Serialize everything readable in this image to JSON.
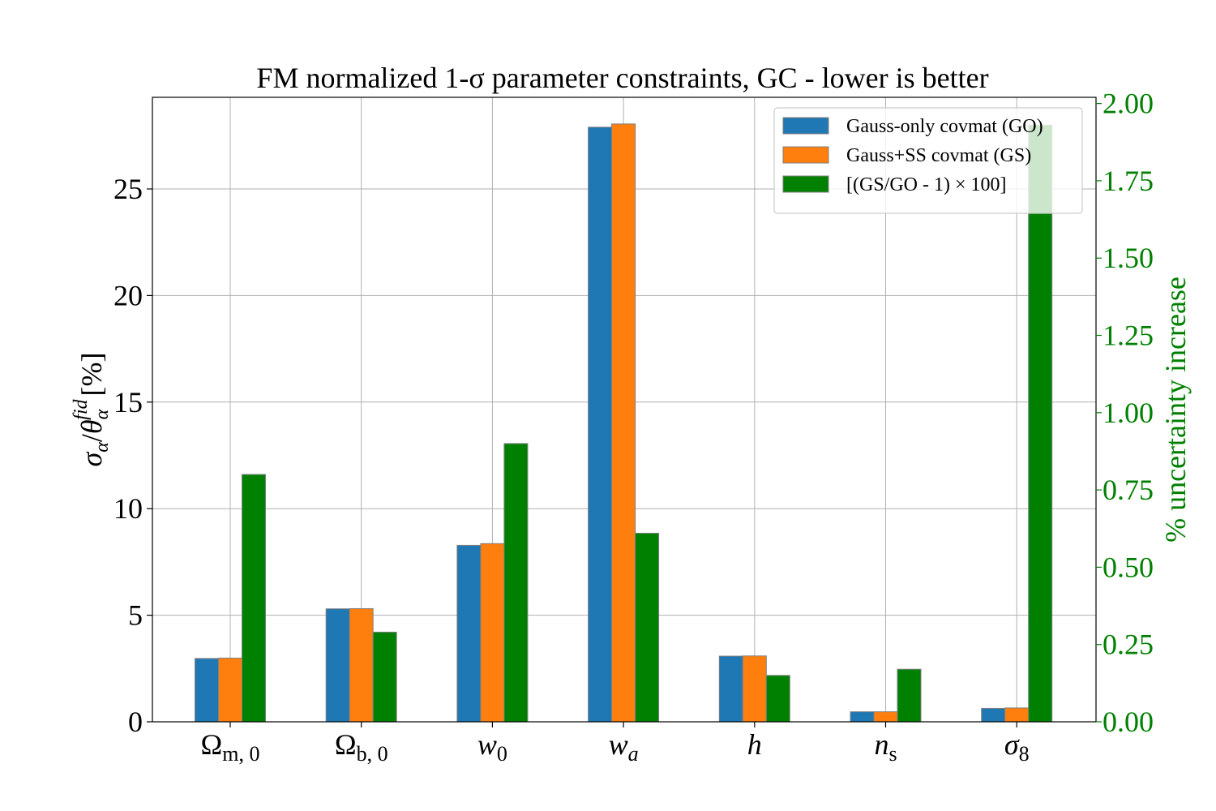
{
  "chart_data": {
    "type": "bar",
    "title": "FM normalized 1-σ parameter constraints, GC - lower is better",
    "categories": [
      "Ωm,0",
      "Ωb,0",
      "w0",
      "wa",
      "h",
      "ns",
      "σ8"
    ],
    "category_labels": [
      {
        "main": "Ω",
        "sub": "m, 0",
        "italic": false
      },
      {
        "main": "Ω",
        "sub": "b, 0",
        "italic": false
      },
      {
        "main": "w",
        "sub": "0",
        "italic": true
      },
      {
        "main": "w",
        "sub": "a",
        "italic": true
      },
      {
        "main": "h",
        "sub": "",
        "italic": true
      },
      {
        "main": "n",
        "sub": "s",
        "italic": true
      },
      {
        "main": "σ",
        "sub": "8",
        "italic": true
      }
    ],
    "series": [
      {
        "name": "Gauss-only covmat (GO)",
        "axis": "left",
        "color": "#1f77b4",
        "values": [
          2.97,
          5.3,
          8.28,
          27.9,
          3.08,
          0.47,
          0.63
        ]
      },
      {
        "name": "Gauss+SS covmat (GS)",
        "axis": "left",
        "color": "#ff7f0e",
        "values": [
          2.99,
          5.31,
          8.36,
          28.05,
          3.09,
          0.47,
          0.65
        ]
      },
      {
        "name": "[(GS/GO - 1) × 100]",
        "axis": "right",
        "color": "#008000",
        "values": [
          0.8,
          0.29,
          0.9,
          0.61,
          0.15,
          0.17,
          1.93
        ]
      }
    ],
    "ylabel_left": {
      "main": "σα/θαfid",
      "unit": "[%]"
    },
    "ylabel_right": "% uncertainty increase",
    "ylim_left": [
      0,
      29.3
    ],
    "ylim_right": [
      0,
      2.02
    ],
    "yticks_left": [
      "0",
      "5",
      "10",
      "15",
      "20",
      "25"
    ],
    "yticks_right": [
      "0.00",
      "0.25",
      "0.50",
      "0.75",
      "1.00",
      "1.25",
      "1.50",
      "1.75",
      "2.00"
    ],
    "grid": true,
    "legend_position": "top-right",
    "right_axis_color": "#008000"
  }
}
